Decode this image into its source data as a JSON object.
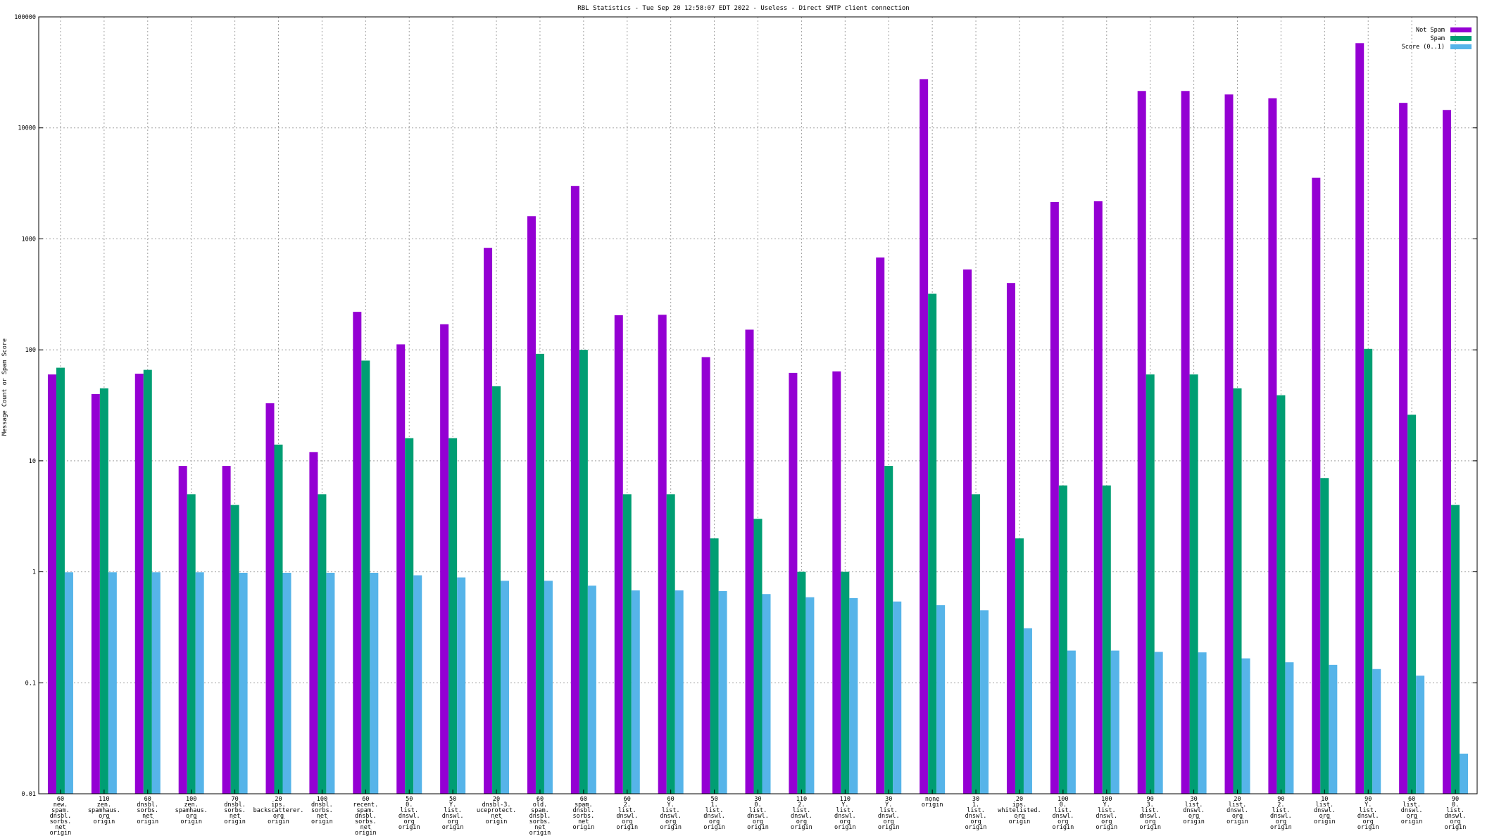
{
  "chart_data": {
    "type": "bar",
    "title": "RBL Statistics - Tue Sep 20 12:58:07 EDT 2022 - Useless - Direct SMTP client connection",
    "xlabel": "",
    "ylabel": "Message Count or Spam Score",
    "yscale": "log",
    "ylim": [
      0.01,
      100000
    ],
    "yticks": [
      "0.01",
      "0.1",
      "1",
      "10",
      "100",
      "1000",
      "10000",
      "100000"
    ],
    "grid": true,
    "legend_position": "top-right",
    "categories": [
      [
        "60",
        "new.",
        "spam.",
        "dnsbl.",
        "sorbs.",
        "net",
        "origin"
      ],
      [
        "110",
        "zen.",
        "spamhaus.",
        "org",
        "origin"
      ],
      [
        "60",
        "dnsbl.",
        "sorbs.",
        "net",
        "origin"
      ],
      [
        "100",
        "zen.",
        "spamhaus.",
        "org",
        "origin"
      ],
      [
        "70",
        "dnsbl.",
        "sorbs.",
        "net",
        "origin"
      ],
      [
        "20",
        "ips.",
        "backscatterer.",
        "org",
        "origin"
      ],
      [
        "100",
        "dnsbl.",
        "sorbs.",
        "net",
        "origin"
      ],
      [
        "60",
        "recent.",
        "spam.",
        "dnsbl.",
        "sorbs.",
        "net",
        "origin"
      ],
      [
        "50",
        "0.",
        "list.",
        "dnswl.",
        "org",
        "origin"
      ],
      [
        "50",
        "Y.",
        "list.",
        "dnswl.",
        "org",
        "origin"
      ],
      [
        "20",
        "dnsbl-3.",
        "uceprotect.",
        "net",
        "origin"
      ],
      [
        "60",
        "old.",
        "spam.",
        "dnsbl.",
        "sorbs.",
        "net",
        "origin"
      ],
      [
        "60",
        "spam.",
        "dnsbl.",
        "sorbs.",
        "net",
        "origin"
      ],
      [
        "60",
        "2.",
        "list.",
        "dnswl.",
        "org",
        "origin"
      ],
      [
        "60",
        "Y.",
        "list.",
        "dnswl.",
        "org",
        "origin"
      ],
      [
        "50",
        "1.",
        "list.",
        "dnswl.",
        "org",
        "origin"
      ],
      [
        "30",
        "0.",
        "list.",
        "dnswl.",
        "org",
        "origin"
      ],
      [
        "110",
        "2.",
        "list.",
        "dnswl.",
        "org",
        "origin"
      ],
      [
        "110",
        "Y.",
        "list.",
        "dnswl.",
        "org",
        "origin"
      ],
      [
        "30",
        "Y.",
        "list.",
        "dnswl.",
        "org",
        "origin"
      ],
      [
        "none",
        "origin"
      ],
      [
        "30",
        "1.",
        "list.",
        "dnswl.",
        "org",
        "origin"
      ],
      [
        "20",
        "ips.",
        "whitelisted.",
        "org",
        "origin"
      ],
      [
        "100",
        "0.",
        "list.",
        "dnswl.",
        "org",
        "origin"
      ],
      [
        "100",
        "Y.",
        "list.",
        "dnswl.",
        "org",
        "origin"
      ],
      [
        "90",
        "3.",
        "list.",
        "dnswl.",
        "org",
        "origin"
      ],
      [
        "30",
        "list.",
        "dnswl.",
        "org",
        "origin"
      ],
      [
        "20",
        "list.",
        "dnswl.",
        "org",
        "origin"
      ],
      [
        "90",
        "2.",
        "list.",
        "dnswl.",
        "org",
        "origin"
      ],
      [
        "10",
        "list.",
        "dnswl.",
        "org",
        "origin"
      ],
      [
        "90",
        "Y.",
        "list.",
        "dnswl.",
        "org",
        "origin"
      ],
      [
        "60",
        "list.",
        "dnswl.",
        "org",
        "origin"
      ],
      [
        "90",
        "0.",
        "list.",
        "dnswl.",
        "org",
        "origin"
      ]
    ],
    "series": [
      {
        "name": "Not Spam",
        "color": "#9400d3",
        "values": [
          60,
          40,
          61,
          9,
          9,
          33,
          12,
          220,
          112,
          170,
          830,
          1600,
          3000,
          205,
          207,
          86,
          152,
          62,
          64,
          680,
          27500,
          530,
          400,
          2150,
          2180,
          21500,
          21500,
          20000,
          18500,
          3550,
          58000,
          16800,
          14500
        ]
      },
      {
        "name": "Spam",
        "color": "#009e73",
        "values": [
          69,
          45,
          66,
          5,
          4,
          14,
          5,
          80,
          16,
          16,
          47,
          92,
          100,
          5,
          5,
          2,
          3,
          1,
          1,
          9,
          320,
          5,
          2,
          6,
          6,
          60,
          60,
          45,
          39,
          7,
          102,
          26,
          4
        ]
      },
      {
        "name": "Score (0..1)",
        "color": "#56b4e9",
        "values": [
          0.99,
          0.99,
          0.99,
          0.99,
          0.98,
          0.98,
          0.98,
          0.98,
          0.93,
          0.89,
          0.83,
          0.83,
          0.75,
          0.68,
          0.68,
          0.67,
          0.63,
          0.59,
          0.58,
          0.54,
          0.5,
          0.45,
          0.31,
          0.195,
          0.195,
          0.19,
          0.188,
          0.166,
          0.153,
          0.145,
          0.133,
          0.116,
          0.023
        ]
      }
    ]
  }
}
